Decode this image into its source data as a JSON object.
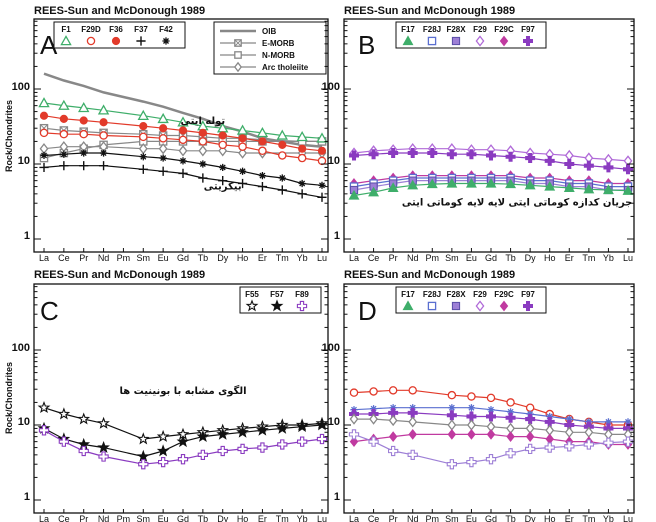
{
  "colors": {
    "pink": "#e0457a",
    "green": "#3fae6a",
    "red": "#e23a2a",
    "gray": "#888888",
    "blue": "#5a6fd0",
    "lav": "#9d7fd6",
    "purple": "#8a3bc0",
    "violet": "#b06ad8",
    "magenta": "#c03aa0",
    "black": "#111111"
  },
  "chart_data": [
    {
      "id": "A",
      "type": "line",
      "panel_letter": "A",
      "title": "REES-Sun and McDonough 1989",
      "ylabel": "Rock/Chondrites",
      "yscale": "log",
      "ylim": [
        0.7,
        400
      ],
      "yticks": [
        "1",
        "10",
        "100"
      ],
      "categories": [
        "La",
        "Ce",
        "Pr",
        "Nd",
        "Pm",
        "Sm",
        "Eu",
        "Gd",
        "Tb",
        "Dy",
        "Ho",
        "Er",
        "Tm",
        "Yb",
        "Lu"
      ],
      "legend": [
        {
          "label": "F1",
          "marker": "tri_open",
          "color": "green"
        },
        {
          "label": "F29D",
          "marker": "circle_open",
          "color": "red"
        },
        {
          "label": "F36",
          "marker": "circle_fill",
          "color": "red"
        },
        {
          "label": "F37",
          "marker": "plus",
          "color": "black"
        },
        {
          "label": "F42",
          "marker": "asterisk",
          "color": "black"
        }
      ],
      "ref_legend": [
        {
          "label": "OIB",
          "marker": "none",
          "color": "gray"
        },
        {
          "label": "E-MORB",
          "marker": "square_x",
          "color": "gray"
        },
        {
          "label": "N-MORB",
          "marker": "square_open",
          "color": "gray"
        },
        {
          "label": "Arc tholeiite",
          "marker": "diamond_open",
          "color": "gray"
        }
      ],
      "annotations": [
        {
          "text": "توله ایتی",
          "cat": "Tb",
          "y": 34
        },
        {
          "text": "بیکریتی",
          "cat": "Dy",
          "y": 4.6
        }
      ],
      "series": [
        {
          "name": "OIB",
          "marker": "none",
          "color": "gray",
          "width": 2.5,
          "values": [
            160,
            130,
            110,
            90,
            null,
            68,
            58,
            48,
            40,
            32,
            27,
            22,
            null,
            18,
            17
          ]
        },
        {
          "name": "E-MORB",
          "marker": "square_x",
          "color": "gray",
          "values": [
            30,
            28,
            27,
            26,
            null,
            25,
            24,
            24,
            23,
            22,
            22,
            21,
            null,
            20,
            20
          ]
        },
        {
          "name": "N-MORB",
          "marker": "square_open",
          "color": "gray",
          "values": [
            12,
            14,
            16,
            18,
            null,
            20,
            20,
            20,
            20,
            20,
            20,
            20,
            null,
            20,
            20
          ]
        },
        {
          "name": "Arc tholeiite",
          "marker": "diamond_open",
          "color": "gray",
          "values": [
            16,
            17,
            17,
            17,
            null,
            16,
            16,
            15,
            15,
            15,
            14,
            14,
            null,
            14,
            14
          ]
        },
        {
          "name": "F1",
          "marker": "tri_open",
          "color": "green",
          "values": [
            65,
            60,
            56,
            52,
            null,
            44,
            40,
            36,
            32,
            30,
            28,
            26,
            24,
            23,
            22
          ]
        },
        {
          "name": "F36",
          "marker": "circle_fill",
          "color": "red",
          "values": [
            44,
            40,
            38,
            36,
            null,
            32,
            30,
            28,
            26,
            24,
            22,
            20,
            18,
            16,
            15
          ]
        },
        {
          "name": "F29D",
          "marker": "circle_open",
          "color": "red",
          "values": [
            26,
            25,
            25,
            24,
            null,
            23,
            22,
            21,
            20,
            18,
            17,
            15,
            13,
            12,
            11
          ]
        },
        {
          "name": "F37",
          "marker": "plus",
          "color": "black",
          "values": [
            9,
            9.5,
            9.5,
            9.5,
            null,
            8.5,
            8,
            7.5,
            6.5,
            6,
            5.5,
            5,
            4.5,
            4,
            3.6
          ]
        },
        {
          "name": "F42",
          "marker": "asterisk",
          "color": "black",
          "values": [
            13,
            13.5,
            14,
            14,
            null,
            12.5,
            12,
            11,
            10,
            9,
            8,
            7,
            6.5,
            5.5,
            5.2
          ]
        }
      ]
    },
    {
      "id": "B",
      "type": "line",
      "panel_letter": "B",
      "title": "REES-Sun and McDonough 1989",
      "ylabel": "",
      "yscale": "log",
      "ylim": [
        0.7,
        400
      ],
      "yticks": [
        "1",
        "10",
        "100"
      ],
      "categories": [
        "La",
        "Ce",
        "Pr",
        "Nd",
        "Pm",
        "Sm",
        "Eu",
        "Gd",
        "Tb",
        "Dy",
        "Ho",
        "Er",
        "Tm",
        "Yb",
        "Lu"
      ],
      "legend": [
        {
          "label": "F17",
          "marker": "tri_fill",
          "color": "green"
        },
        {
          "label": "F28J",
          "marker": "square_open",
          "color": "blue"
        },
        {
          "label": "F28X",
          "marker": "square_fill",
          "color": "lav"
        },
        {
          "label": "F29",
          "marker": "diamond_open",
          "color": "violet"
        },
        {
          "label": "F29C",
          "marker": "diamond_fill",
          "color": "magenta"
        },
        {
          "label": "F97",
          "marker": "cross_fill",
          "color": "purple"
        }
      ],
      "annotations": [
        {
          "text": "کوماتی ایتی",
          "cat": "Pm",
          "y": 2.8
        },
        {
          "text": "جریان کدازه کوماتی ایتی لایه لایه",
          "cat": "Ho",
          "y": 2.8
        }
      ],
      "series": [
        {
          "name": "F29",
          "marker": "diamond_open",
          "color": "violet",
          "values": [
            14,
            15,
            15.5,
            16,
            16,
            16,
            15.5,
            15.5,
            15,
            14,
            13.5,
            13,
            12,
            11.5,
            11
          ]
        },
        {
          "name": "F97",
          "marker": "cross_fill",
          "color": "purple",
          "values": [
            13,
            13.5,
            14,
            14,
            14,
            13.5,
            13.5,
            13,
            12.5,
            12,
            11,
            10,
            9.5,
            9,
            8.5
          ]
        },
        {
          "name": "F29C",
          "marker": "diamond_fill",
          "color": "magenta",
          "values": [
            5.5,
            6,
            6.5,
            7,
            7,
            7,
            7,
            7,
            7,
            6.5,
            6.5,
            6,
            6,
            5.5,
            5.5
          ]
        },
        {
          "name": "F28J",
          "marker": "square_open",
          "color": "blue",
          "values": [
            5,
            5.5,
            6,
            6.5,
            6.5,
            6.5,
            6.5,
            6.5,
            6.5,
            6,
            6,
            5.5,
            5.5,
            5,
            5
          ]
        },
        {
          "name": "F28X",
          "marker": "square_fill",
          "color": "lav",
          "values": [
            4.5,
            5,
            5.5,
            6,
            6,
            6,
            6,
            6,
            6,
            5.5,
            5.5,
            5,
            5,
            4.5,
            4.5
          ]
        },
        {
          "name": "F17",
          "marker": "tri_fill",
          "color": "green",
          "values": [
            3.8,
            4.2,
            4.8,
            5.2,
            5.4,
            5.5,
            5.5,
            5.5,
            5.4,
            5.2,
            5,
            4.8,
            4.6,
            4.5,
            4.4
          ]
        }
      ]
    },
    {
      "id": "C",
      "type": "line",
      "panel_letter": "C",
      "title": "REES-Sun and McDonough 1989",
      "ylabel": "Rock/Chondrites",
      "yscale": "log",
      "ylim": [
        0.7,
        400
      ],
      "yticks": [
        "1",
        "10",
        "100"
      ],
      "categories": [
        "La",
        "Ce",
        "Pr",
        "Nd",
        "Pm",
        "Sm",
        "Eu",
        "Gd",
        "Tb",
        "Dy",
        "Ho",
        "Er",
        "Tm",
        "Yb",
        "Lu"
      ],
      "legend": [
        {
          "label": "F55",
          "marker": "star_open",
          "color": "black"
        },
        {
          "label": "F57",
          "marker": "star_fill",
          "color": "black"
        },
        {
          "label": "F89",
          "marker": "cross_open",
          "color": "purple"
        }
      ],
      "annotations": [
        {
          "text": "الگوی مشابه با بونینیت ها",
          "cat": "Gd",
          "y": 26
        }
      ],
      "series": [
        {
          "name": "F55",
          "marker": "star_open",
          "color": "black",
          "values": [
            17,
            14,
            12,
            10.5,
            null,
            6.5,
            7,
            7.5,
            8,
            8.5,
            9,
            9.5,
            10,
            10,
            10.5
          ]
        },
        {
          "name": "F57",
          "marker": "star_fill",
          "color": "black",
          "values": [
            9,
            6.5,
            5.5,
            5,
            null,
            3.8,
            4.5,
            6,
            7,
            7.5,
            8,
            8.5,
            9,
            9.5,
            10
          ]
        },
        {
          "name": "F89",
          "marker": "cross_open",
          "color": "purple",
          "values": [
            8.5,
            6,
            4.5,
            3.8,
            null,
            3,
            3.2,
            3.5,
            4,
            4.5,
            4.8,
            5,
            5.5,
            6,
            6.5
          ]
        }
      ]
    },
    {
      "id": "D",
      "type": "line",
      "panel_letter": "D",
      "title": "REES-Sun and McDonough 1989",
      "ylabel": "",
      "yscale": "log",
      "ylim": [
        0.7,
        400
      ],
      "yticks": [
        "1",
        "10",
        "100"
      ],
      "categories": [
        "La",
        "Ce",
        "Pr",
        "Nd",
        "Pm",
        "Sm",
        "Eu",
        "Gd",
        "Tb",
        "Dy",
        "Ho",
        "Er",
        "Tm",
        "Yb",
        "Lu"
      ],
      "legend": [
        {
          "label": "F17",
          "marker": "tri_fill",
          "color": "green"
        },
        {
          "label": "F28J",
          "marker": "square_open",
          "color": "blue"
        },
        {
          "label": "F28X",
          "marker": "square_fill",
          "color": "lav"
        },
        {
          "label": "F29",
          "marker": "diamond_open",
          "color": "violet"
        },
        {
          "label": "F29C",
          "marker": "diamond_fill",
          "color": "magenta"
        },
        {
          "label": "F97",
          "marker": "cross_fill",
          "color": "purple"
        }
      ],
      "annotations": [],
      "series": [
        {
          "name": "red curve",
          "marker": "circle_open",
          "color": "red",
          "values": [
            27,
            28,
            29,
            29,
            null,
            25,
            24,
            23,
            20,
            17,
            14,
            12,
            11,
            10,
            10
          ]
        },
        {
          "name": "upper blue",
          "marker": "asterisk",
          "color": "blue",
          "values": [
            16,
            16.5,
            17,
            17,
            null,
            17,
            17,
            16,
            15,
            14,
            13,
            12,
            11,
            11,
            11
          ]
        },
        {
          "name": "upper purple",
          "marker": "cross_fill",
          "color": "purple",
          "values": [
            14,
            14,
            14.5,
            14.5,
            null,
            13.5,
            13,
            13,
            12.5,
            12,
            11,
            10,
            9.5,
            9,
            9
          ]
        },
        {
          "name": "gray line",
          "marker": "diamond_open",
          "color": "gray",
          "values": [
            12,
            12,
            11.5,
            11,
            null,
            10,
            10,
            9.5,
            9,
            9,
            8.5,
            8,
            8,
            7.5,
            7.5
          ]
        },
        {
          "name": "magenta",
          "marker": "diamond_fill",
          "color": "magenta",
          "values": [
            6,
            6.5,
            7,
            7.5,
            null,
            7.5,
            7.5,
            7.5,
            7,
            7,
            6.5,
            6,
            6,
            5.5,
            5.5
          ]
        },
        {
          "name": "lower lavender",
          "marker": "cross_open",
          "color": "lav",
          "values": [
            7.5,
            6,
            4.5,
            4,
            null,
            3,
            3.2,
            3.5,
            4.2,
            4.8,
            5,
            5.2,
            5.5,
            5.8,
            6
          ]
        }
      ]
    }
  ]
}
